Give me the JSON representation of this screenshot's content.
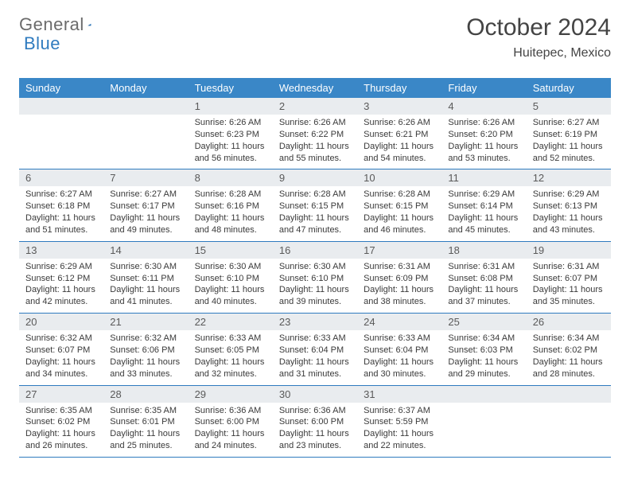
{
  "brand": {
    "text1": "General",
    "text2": "Blue"
  },
  "title": "October 2024",
  "location": "Huitepec, Mexico",
  "colors": {
    "header_bg": "#3a87c7",
    "header_text": "#ffffff",
    "daynum_bg": "#e9ecef",
    "border": "#2f7bbf",
    "body_text": "#3a3a3a",
    "logo_gray": "#6b6b6b",
    "logo_blue": "#2f7bbf"
  },
  "day_labels": [
    "Sunday",
    "Monday",
    "Tuesday",
    "Wednesday",
    "Thursday",
    "Friday",
    "Saturday"
  ],
  "weeks": [
    [
      {
        "n": "",
        "sr": "",
        "ss": "",
        "dl": ""
      },
      {
        "n": "",
        "sr": "",
        "ss": "",
        "dl": ""
      },
      {
        "n": "1",
        "sr": "Sunrise: 6:26 AM",
        "ss": "Sunset: 6:23 PM",
        "dl": "Daylight: 11 hours and 56 minutes."
      },
      {
        "n": "2",
        "sr": "Sunrise: 6:26 AM",
        "ss": "Sunset: 6:22 PM",
        "dl": "Daylight: 11 hours and 55 minutes."
      },
      {
        "n": "3",
        "sr": "Sunrise: 6:26 AM",
        "ss": "Sunset: 6:21 PM",
        "dl": "Daylight: 11 hours and 54 minutes."
      },
      {
        "n": "4",
        "sr": "Sunrise: 6:26 AM",
        "ss": "Sunset: 6:20 PM",
        "dl": "Daylight: 11 hours and 53 minutes."
      },
      {
        "n": "5",
        "sr": "Sunrise: 6:27 AM",
        "ss": "Sunset: 6:19 PM",
        "dl": "Daylight: 11 hours and 52 minutes."
      }
    ],
    [
      {
        "n": "6",
        "sr": "Sunrise: 6:27 AM",
        "ss": "Sunset: 6:18 PM",
        "dl": "Daylight: 11 hours and 51 minutes."
      },
      {
        "n": "7",
        "sr": "Sunrise: 6:27 AM",
        "ss": "Sunset: 6:17 PM",
        "dl": "Daylight: 11 hours and 49 minutes."
      },
      {
        "n": "8",
        "sr": "Sunrise: 6:28 AM",
        "ss": "Sunset: 6:16 PM",
        "dl": "Daylight: 11 hours and 48 minutes."
      },
      {
        "n": "9",
        "sr": "Sunrise: 6:28 AM",
        "ss": "Sunset: 6:15 PM",
        "dl": "Daylight: 11 hours and 47 minutes."
      },
      {
        "n": "10",
        "sr": "Sunrise: 6:28 AM",
        "ss": "Sunset: 6:15 PM",
        "dl": "Daylight: 11 hours and 46 minutes."
      },
      {
        "n": "11",
        "sr": "Sunrise: 6:29 AM",
        "ss": "Sunset: 6:14 PM",
        "dl": "Daylight: 11 hours and 45 minutes."
      },
      {
        "n": "12",
        "sr": "Sunrise: 6:29 AM",
        "ss": "Sunset: 6:13 PM",
        "dl": "Daylight: 11 hours and 43 minutes."
      }
    ],
    [
      {
        "n": "13",
        "sr": "Sunrise: 6:29 AM",
        "ss": "Sunset: 6:12 PM",
        "dl": "Daylight: 11 hours and 42 minutes."
      },
      {
        "n": "14",
        "sr": "Sunrise: 6:30 AM",
        "ss": "Sunset: 6:11 PM",
        "dl": "Daylight: 11 hours and 41 minutes."
      },
      {
        "n": "15",
        "sr": "Sunrise: 6:30 AM",
        "ss": "Sunset: 6:10 PM",
        "dl": "Daylight: 11 hours and 40 minutes."
      },
      {
        "n": "16",
        "sr": "Sunrise: 6:30 AM",
        "ss": "Sunset: 6:10 PM",
        "dl": "Daylight: 11 hours and 39 minutes."
      },
      {
        "n": "17",
        "sr": "Sunrise: 6:31 AM",
        "ss": "Sunset: 6:09 PM",
        "dl": "Daylight: 11 hours and 38 minutes."
      },
      {
        "n": "18",
        "sr": "Sunrise: 6:31 AM",
        "ss": "Sunset: 6:08 PM",
        "dl": "Daylight: 11 hours and 37 minutes."
      },
      {
        "n": "19",
        "sr": "Sunrise: 6:31 AM",
        "ss": "Sunset: 6:07 PM",
        "dl": "Daylight: 11 hours and 35 minutes."
      }
    ],
    [
      {
        "n": "20",
        "sr": "Sunrise: 6:32 AM",
        "ss": "Sunset: 6:07 PM",
        "dl": "Daylight: 11 hours and 34 minutes."
      },
      {
        "n": "21",
        "sr": "Sunrise: 6:32 AM",
        "ss": "Sunset: 6:06 PM",
        "dl": "Daylight: 11 hours and 33 minutes."
      },
      {
        "n": "22",
        "sr": "Sunrise: 6:33 AM",
        "ss": "Sunset: 6:05 PM",
        "dl": "Daylight: 11 hours and 32 minutes."
      },
      {
        "n": "23",
        "sr": "Sunrise: 6:33 AM",
        "ss": "Sunset: 6:04 PM",
        "dl": "Daylight: 11 hours and 31 minutes."
      },
      {
        "n": "24",
        "sr": "Sunrise: 6:33 AM",
        "ss": "Sunset: 6:04 PM",
        "dl": "Daylight: 11 hours and 30 minutes."
      },
      {
        "n": "25",
        "sr": "Sunrise: 6:34 AM",
        "ss": "Sunset: 6:03 PM",
        "dl": "Daylight: 11 hours and 29 minutes."
      },
      {
        "n": "26",
        "sr": "Sunrise: 6:34 AM",
        "ss": "Sunset: 6:02 PM",
        "dl": "Daylight: 11 hours and 28 minutes."
      }
    ],
    [
      {
        "n": "27",
        "sr": "Sunrise: 6:35 AM",
        "ss": "Sunset: 6:02 PM",
        "dl": "Daylight: 11 hours and 26 minutes."
      },
      {
        "n": "28",
        "sr": "Sunrise: 6:35 AM",
        "ss": "Sunset: 6:01 PM",
        "dl": "Daylight: 11 hours and 25 minutes."
      },
      {
        "n": "29",
        "sr": "Sunrise: 6:36 AM",
        "ss": "Sunset: 6:00 PM",
        "dl": "Daylight: 11 hours and 24 minutes."
      },
      {
        "n": "30",
        "sr": "Sunrise: 6:36 AM",
        "ss": "Sunset: 6:00 PM",
        "dl": "Daylight: 11 hours and 23 minutes."
      },
      {
        "n": "31",
        "sr": "Sunrise: 6:37 AM",
        "ss": "Sunset: 5:59 PM",
        "dl": "Daylight: 11 hours and 22 minutes."
      },
      {
        "n": "",
        "sr": "",
        "ss": "",
        "dl": ""
      },
      {
        "n": "",
        "sr": "",
        "ss": "",
        "dl": ""
      }
    ]
  ]
}
